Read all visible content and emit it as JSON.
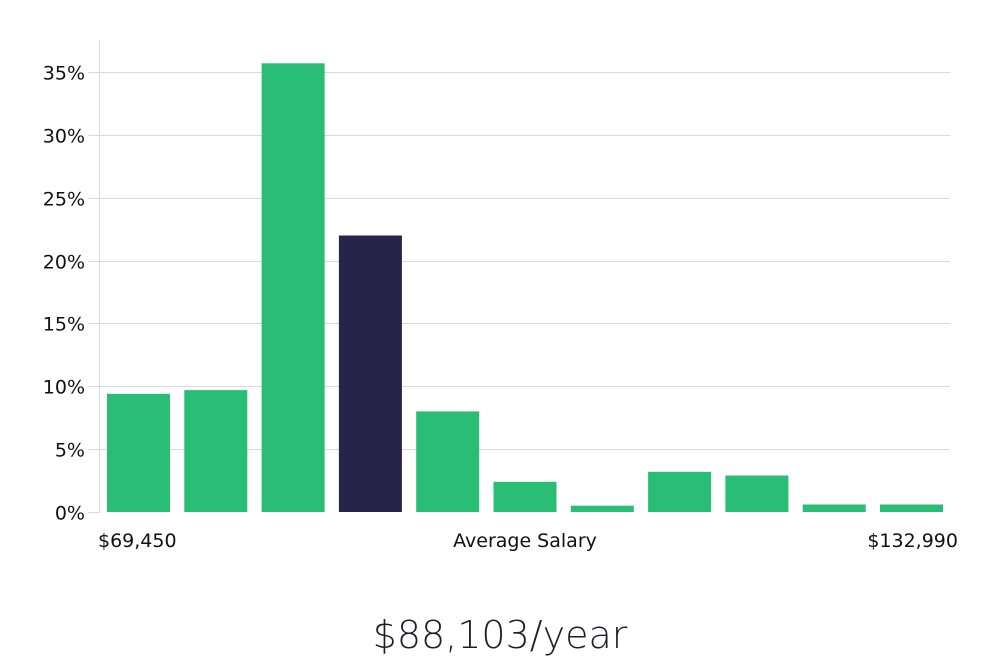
{
  "colors": {
    "bar": "#29bd76",
    "highlight": "#27244a",
    "grid": "#d9d9d9",
    "text": "#111111"
  },
  "chart_data": {
    "type": "bar",
    "title": "",
    "xlabel": "Average Salary",
    "ylabel": "",
    "x_min_label": "$69,450",
    "x_max_label": "$132,990",
    "ylim": [
      0,
      37
    ],
    "y_ticks": [
      0,
      5,
      10,
      15,
      20,
      25,
      30,
      35
    ],
    "y_tick_labels": [
      "0%",
      "5%",
      "10%",
      "15%",
      "20%",
      "25%",
      "30%",
      "35%"
    ],
    "grid": true,
    "legend": "none",
    "values": [
      9.4,
      9.7,
      35.7,
      22.0,
      8.0,
      2.4,
      0.5,
      3.2,
      2.9,
      0.6,
      0.6
    ],
    "highlight_index": 3
  },
  "salary": {
    "display": "$88,103/year"
  }
}
